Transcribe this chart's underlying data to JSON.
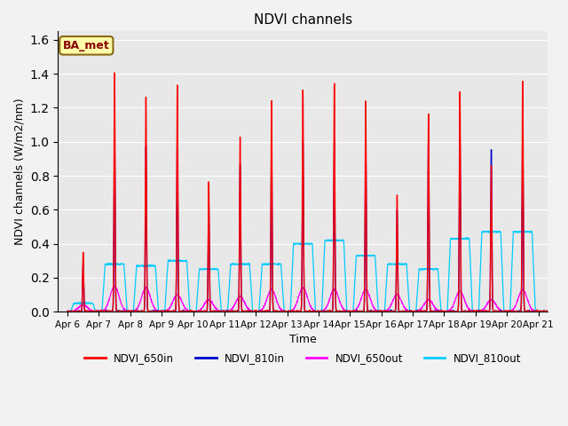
{
  "title": "NDVI channels",
  "xlabel": "Time",
  "ylabel": "NDVI channels (W/m2/nm)",
  "ylim": [
    0,
    1.65
  ],
  "bg_color": "#e8e8e8",
  "fig_bg_color": "#f2f2f2",
  "series_colors": {
    "NDVI_650in": "#ff0000",
    "NDVI_810in": "#0000cc",
    "NDVI_650out": "#ff00ff",
    "NDVI_810out": "#00ccff"
  },
  "x_tick_labels": [
    "Apr 6",
    "Apr 7",
    "Apr 8",
    "Apr 9",
    "Apr 10",
    "Apr 11",
    "Apr 12",
    "Apr 13",
    "Apr 14",
    "Apr 15",
    "Apr 16",
    "Apr 17",
    "Apr 18",
    "Apr 19",
    "Apr 20",
    "Apr 21"
  ],
  "annotation_text": "BA_met",
  "peak_times": [
    0.5,
    1.5,
    2.5,
    3.5,
    4.5,
    5.5,
    6.5,
    7.5,
    8.5,
    9.5,
    10.5,
    11.5,
    12.5,
    13.5,
    14.5
  ],
  "peak_650in": [
    0.35,
    1.41,
    1.27,
    1.33,
    0.77,
    1.03,
    1.25,
    1.3,
    1.35,
    1.24,
    0.69,
    1.16,
    1.31,
    0.86,
    1.37
  ],
  "peak_810in": [
    0.28,
    1.01,
    0.98,
    1.02,
    0.65,
    0.87,
    1.0,
    1.01,
    1.0,
    1.01,
    0.6,
    1.02,
    1.05,
    0.95,
    1.06
  ],
  "peak_650out": [
    0.04,
    0.15,
    0.14,
    0.1,
    0.07,
    0.09,
    0.13,
    0.14,
    0.13,
    0.13,
    0.1,
    0.07,
    0.12,
    0.07,
    0.13
  ],
  "peak_810out": [
    0.05,
    0.28,
    0.27,
    0.3,
    0.25,
    0.28,
    0.28,
    0.4,
    0.42,
    0.33,
    0.28,
    0.25,
    0.43,
    0.47,
    0.47
  ],
  "n_points": 3000,
  "total_days": 15.5
}
